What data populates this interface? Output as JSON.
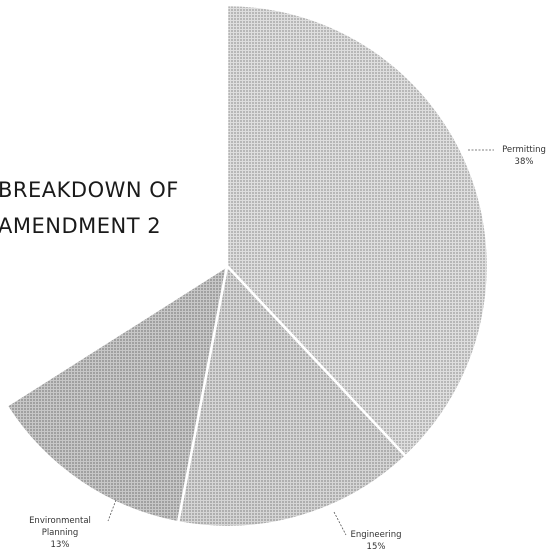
{
  "chart_data": {
    "type": "pie",
    "title_lines": [
      "BREAKDOWN OF",
      "AMENDMENT 2"
    ],
    "slices": [
      {
        "name": "Permitting",
        "percent_label": "38%",
        "value": 38,
        "color": "#b6b6b6"
      },
      {
        "name": "Engineering",
        "percent_label": "15%",
        "value": 15,
        "color": "#a2a2a2"
      },
      {
        "name": "Environmental Planning",
        "label_lines": [
          "Environmental",
          "Planning"
        ],
        "percent_label": "13%",
        "value": 13,
        "color": "#848484"
      }
    ],
    "pattern": "dotted halftone",
    "legend": "none"
  }
}
